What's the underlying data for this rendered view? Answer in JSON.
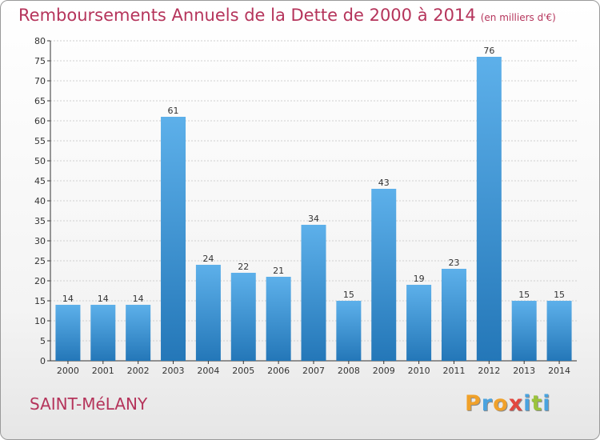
{
  "header": {
    "title": "Remboursements Annuels de la Dette de 2000 à 2014",
    "unit": "(en milliers d'€)"
  },
  "footer": {
    "commune": "SAINT-MéLANY",
    "logo_letters": [
      "P",
      "r",
      "o",
      "x",
      "i",
      "t",
      "i"
    ],
    "logo_colors": [
      "#f0a12a",
      "#4aa3df",
      "#f0a12a",
      "#e2473f",
      "#4aa3df",
      "#9bc33b",
      "#4aa3df"
    ]
  },
  "colors": {
    "bar_top": "#5db0ea",
    "bar_bottom": "#2477b8",
    "grid": "#cfcfcf",
    "axis": "#333333",
    "text": "#333333",
    "title": "#b5345b"
  },
  "chart_data": {
    "type": "bar",
    "title": "Remboursements Annuels de la Dette de 2000 à 2014",
    "subtitle": "(en milliers d'€)",
    "categories": [
      "2000",
      "2001",
      "2002",
      "2003",
      "2004",
      "2005",
      "2006",
      "2007",
      "2008",
      "2009",
      "2010",
      "2011",
      "2012",
      "2013",
      "2014"
    ],
    "values": [
      14,
      14,
      14,
      61,
      24,
      22,
      21,
      34,
      15,
      43,
      19,
      23,
      76,
      15,
      15
    ],
    "ylim": [
      0,
      80
    ],
    "yticks": [
      0,
      5,
      10,
      15,
      20,
      25,
      30,
      35,
      40,
      45,
      50,
      55,
      60,
      65,
      70,
      75,
      80
    ],
    "grid": "horizontal",
    "data_labels": true,
    "xlabel": "",
    "ylabel": ""
  }
}
